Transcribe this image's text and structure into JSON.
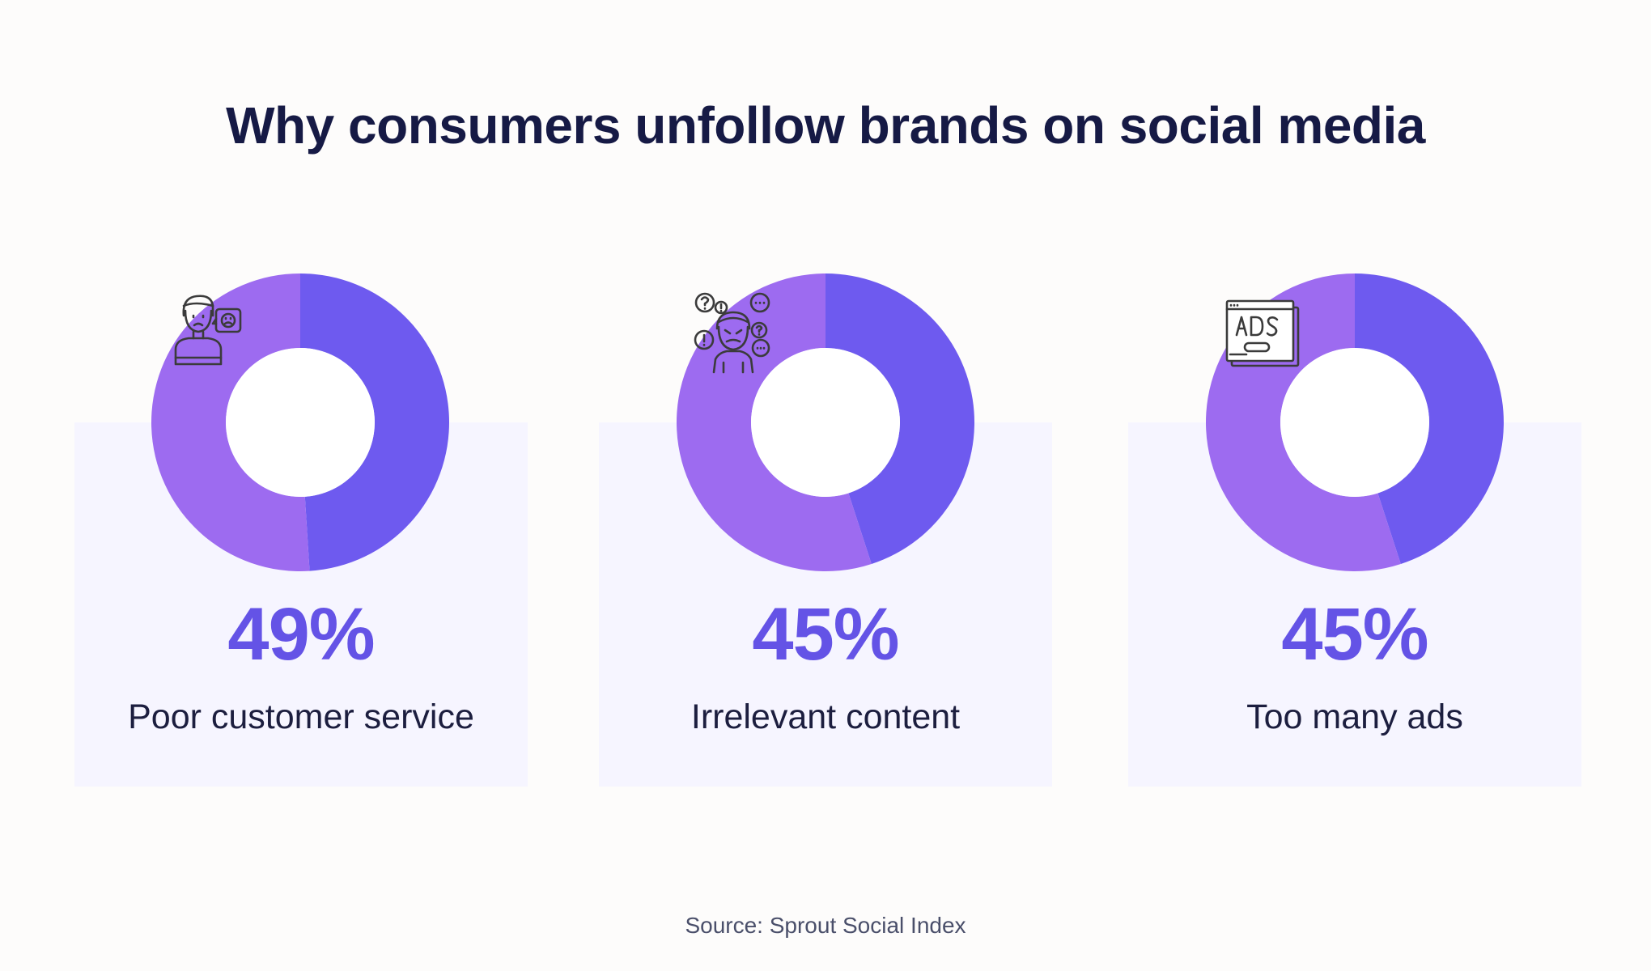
{
  "title": "Why consumers unfollow brands on social media",
  "source": "Source: Sprout Social Index",
  "colors": {
    "value_fill": "#6e5aef",
    "remainder_fill": "#9d6bf0",
    "value_text": "#6453e6",
    "panel_bg": "#f6f5ff"
  },
  "chart_data": [
    {
      "type": "pie",
      "value": 49,
      "value_label": "49%",
      "category": "Poor customer service",
      "icon": "unhappy-customer-icon"
    },
    {
      "type": "pie",
      "value": 45,
      "value_label": "45%",
      "category": "Irrelevant content",
      "icon": "confused-person-icon"
    },
    {
      "type": "pie",
      "value": 45,
      "value_label": "45%",
      "category": "Too many ads",
      "icon": "ads-window-icon"
    }
  ]
}
